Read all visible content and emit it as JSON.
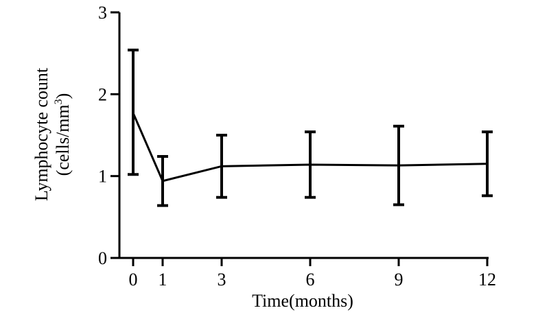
{
  "chart_data": {
    "type": "line",
    "xlabel": "Time(months)",
    "ylabel_line1": "Lymphocyte count",
    "ylabel_line2_prefix": "(cells/mm",
    "ylabel_line2_sup": "3",
    "ylabel_line2_suffix": ")",
    "x": [
      0,
      1,
      3,
      6,
      9,
      12
    ],
    "x_tick_labels": [
      "0",
      "1",
      "3",
      "6",
      "9",
      "12"
    ],
    "y_tick_labels": [
      "0",
      "1",
      "2",
      "3"
    ],
    "y_ticks": [
      0,
      1,
      2,
      3
    ],
    "ylim": [
      0,
      3
    ],
    "series": [
      {
        "values": [
          1.77,
          0.94,
          1.12,
          1.14,
          1.13,
          1.15
        ],
        "err_low": [
          1.02,
          0.64,
          0.74,
          0.74,
          0.65,
          0.76
        ],
        "err_high": [
          2.54,
          1.24,
          1.5,
          1.54,
          1.61,
          1.54
        ]
      }
    ],
    "grid": false,
    "legend": "none"
  }
}
